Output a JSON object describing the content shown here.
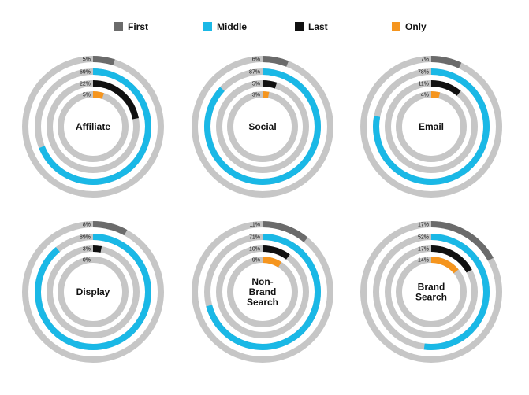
{
  "chart_data": {
    "type": "radial-bar",
    "legend_position": "top",
    "series": [
      {
        "name": "First",
        "color": "#6b6b6b"
      },
      {
        "name": "Middle",
        "color": "#1ab8e6"
      },
      {
        "name": "Last",
        "color": "#111111"
      },
      {
        "name": "Only",
        "color": "#f5951e"
      }
    ],
    "track_color": "#c6c6c6",
    "charts": [
      {
        "label_lines": [
          "Affiliate"
        ],
        "values": [
          5,
          69,
          22,
          5
        ],
        "value_labels": [
          "5%",
          "69%",
          "22%",
          "5%"
        ]
      },
      {
        "label_lines": [
          "Social"
        ],
        "values": [
          6,
          87,
          5,
          3
        ],
        "value_labels": [
          "6%",
          "87%",
          "5%",
          "3%"
        ]
      },
      {
        "label_lines": [
          "Email"
        ],
        "values": [
          7,
          78,
          11,
          4
        ],
        "value_labels": [
          "7%",
          "78%",
          "11%",
          "4%"
        ]
      },
      {
        "label_lines": [
          "Display"
        ],
        "values": [
          8,
          89,
          3,
          0
        ],
        "value_labels": [
          "8%",
          "89%",
          "3%",
          "0%"
        ]
      },
      {
        "label_lines": [
          "Non-",
          "Brand",
          "Search"
        ],
        "values": [
          11,
          71,
          10,
          9
        ],
        "value_labels": [
          "11%",
          "71%",
          "10%",
          "9%"
        ]
      },
      {
        "label_lines": [
          "Brand",
          "Search"
        ],
        "values": [
          17,
          52,
          17,
          14
        ],
        "value_labels": [
          "17%",
          "52%",
          "17%",
          "14%"
        ]
      }
    ]
  }
}
